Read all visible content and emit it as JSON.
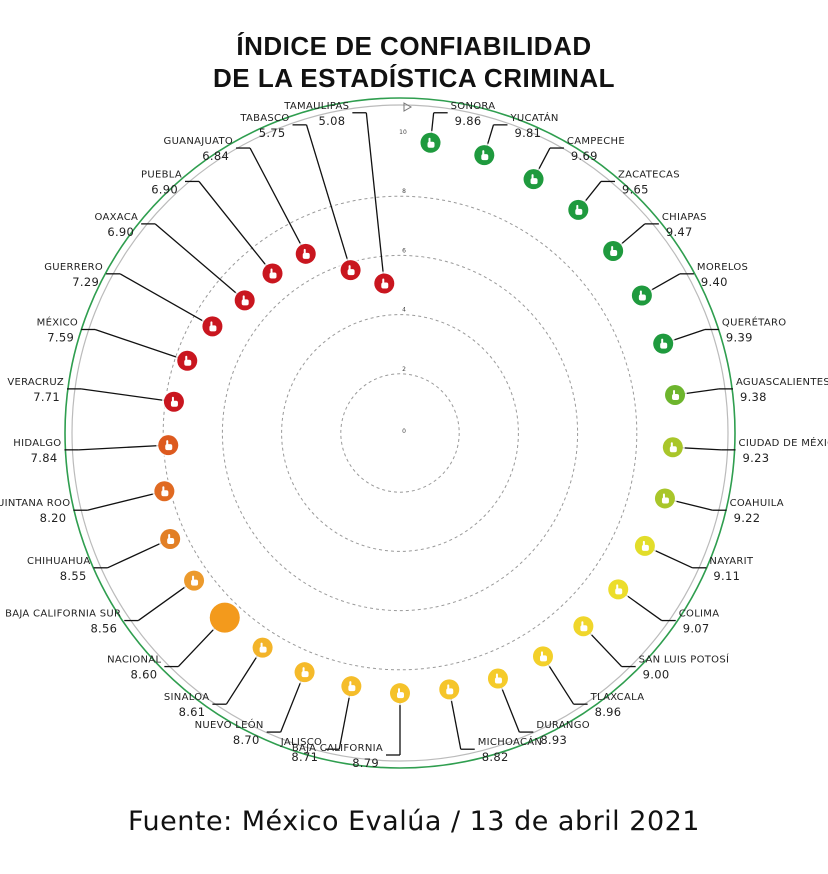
{
  "title_line1": "ÍNDICE DE CONFIABILIDAD",
  "title_line2": "DE LA ESTADÍSTICA CRIMINAL",
  "source": "Fuente: México Evalúa / 13 de abril 2021",
  "chart_data": {
    "type": "scatter",
    "title": "ÍNDICE DE CONFIABILIDAD DE LA ESTADÍSTICA CRIMINAL",
    "radial_scale": {
      "min": 0,
      "max": 10,
      "ticks": [
        0,
        2,
        4,
        6,
        8,
        10
      ]
    },
    "points": [
      {
        "name": "SONORA",
        "value": 9.86,
        "color": "#1f9a3e"
      },
      {
        "name": "YUCATÁN",
        "value": 9.81,
        "color": "#1f9a3e"
      },
      {
        "name": "CAMPECHE",
        "value": 9.69,
        "color": "#1f9a3e"
      },
      {
        "name": "ZACATECAS",
        "value": 9.65,
        "color": "#1f9a3e"
      },
      {
        "name": "CHIAPAS",
        "value": 9.47,
        "color": "#1f9a3e"
      },
      {
        "name": "MORELOS",
        "value": 9.4,
        "color": "#1f9a3e"
      },
      {
        "name": "QUERÉTARO",
        "value": 9.39,
        "color": "#1f9a3e"
      },
      {
        "name": "AGUASCALIENTES",
        "value": 9.38,
        "color": "#6db52d"
      },
      {
        "name": "CIUDAD DE MÉXICO",
        "value": 9.23,
        "color": "#a9c62a"
      },
      {
        "name": "COAHUILA",
        "value": 9.22,
        "color": "#a9c62a"
      },
      {
        "name": "NAYARIT",
        "value": 9.11,
        "color": "#e2dd2a"
      },
      {
        "name": "COLIMA",
        "value": 9.07,
        "color": "#ecdd2b"
      },
      {
        "name": "SAN LUIS POTOSÍ",
        "value": 9.0,
        "color": "#f0d62b"
      },
      {
        "name": "TLAXCALA",
        "value": 8.96,
        "color": "#f3d02a"
      },
      {
        "name": "DURANGO",
        "value": 8.93,
        "color": "#f5cb2a"
      },
      {
        "name": "MICHOACÁN",
        "value": 8.82,
        "color": "#f5c52a"
      },
      {
        "name": "BAJA CALIFORNIA",
        "value": 8.79,
        "color": "#f5c22a"
      },
      {
        "name": "JALISCO",
        "value": 8.71,
        "color": "#f5bd2a"
      },
      {
        "name": "NUEVO LEÓN",
        "value": 8.7,
        "color": "#f5ba2a"
      },
      {
        "name": "SINALOA",
        "value": 8.61,
        "color": "#f3b42a"
      },
      {
        "name": "NACIONAL",
        "value": 8.6,
        "color": "#f39a1c",
        "national": true
      },
      {
        "name": "BAJA CALIFORNIA SUR",
        "value": 8.56,
        "color": "#ec9a2c"
      },
      {
        "name": "CHIHUAHUA",
        "value": 8.55,
        "color": "#e27f25"
      },
      {
        "name": "QUINTANA ROO",
        "value": 8.2,
        "color": "#e06a22"
      },
      {
        "name": "HIDALGO",
        "value": 7.84,
        "color": "#dd5a1f"
      },
      {
        "name": "VERACRUZ",
        "value": 7.71,
        "color": "#c9161f"
      },
      {
        "name": "MÉXICO",
        "value": 7.59,
        "color": "#c9161f"
      },
      {
        "name": "GUERRERO",
        "value": 7.29,
        "color": "#c9161f"
      },
      {
        "name": "OAXACA",
        "value": 6.9,
        "color": "#c9161f"
      },
      {
        "name": "PUEBLA",
        "value": 6.9,
        "color": "#c9161f"
      },
      {
        "name": "GUANAJUATO",
        "value": 6.84,
        "color": "#c9161f"
      },
      {
        "name": "TABASCO",
        "value": 5.75,
        "color": "#c9161f"
      },
      {
        "name": "TAMAULIPAS",
        "value": 5.08,
        "color": "#c9161f"
      }
    ]
  }
}
